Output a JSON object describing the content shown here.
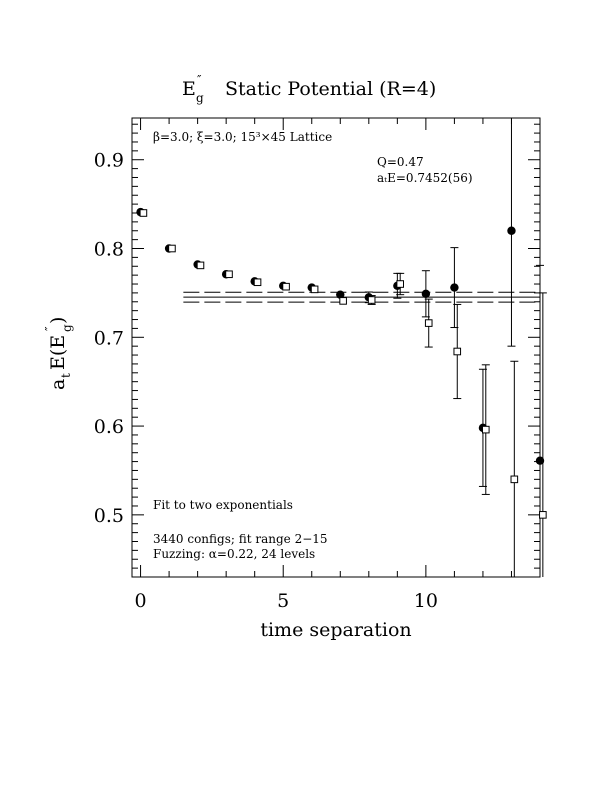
{
  "chart_data": {
    "type": "scatter",
    "title": "Static Potential (R=4)",
    "title_symbol": {
      "base": "E",
      "prime": "″",
      "sub": "g"
    },
    "xlabel": "time separation",
    "ylabel": {
      "main": "a",
      "sub1": "t",
      "mid": "E(E",
      "prime": "″",
      "sub2": "g",
      "end": " )"
    },
    "xlim": [
      -0.3,
      14
    ],
    "ylim": [
      0.43,
      0.947
    ],
    "xticks": [
      0,
      5,
      10
    ],
    "yticks": [
      0.5,
      0.6,
      0.7,
      0.8,
      0.9
    ],
    "xtick_labels": [
      "0",
      "5",
      "10"
    ],
    "ytick_labels": [
      "0.5",
      "0.6",
      "0.7",
      "0.8",
      "0.9"
    ],
    "annotations": {
      "lattice": "β=3.0; ξ=3.0; 15³×45 Lattice",
      "q": "Q=0.47",
      "energy": "aₜE=0.7452(56)",
      "fit_type": "Fit to two exponentials",
      "configs": "3440 configs; fit range 2−15",
      "fuzzing": "Fuzzing: α=0.22, 24 levels"
    },
    "fit": {
      "value": 0.7452,
      "error": 0.0056,
      "x_range": [
        1.5,
        14
      ]
    },
    "series": [
      {
        "marker": "filled-circle",
        "x": [
          0,
          1,
          2,
          3,
          4,
          5,
          6,
          7,
          8,
          9,
          10,
          11,
          12,
          13,
          14
        ],
        "y": [
          0.841,
          0.8,
          0.782,
          0.771,
          0.763,
          0.758,
          0.756,
          0.748,
          0.745,
          0.758,
          0.749,
          0.756,
          0.598,
          0.82,
          0.561
        ],
        "err": [
          0.002,
          0.002,
          0.002,
          0.002,
          0.002,
          0.003,
          0.003,
          0.004,
          0.006,
          0.014,
          0.026,
          0.045,
          0.066,
          0.13,
          0.22
        ]
      },
      {
        "marker": "open-square",
        "x": [
          0.1,
          1.1,
          2.1,
          3.1,
          4.1,
          5.1,
          6.1,
          7.1,
          8.1,
          9.1,
          10.1,
          11.1,
          12.1,
          13.1,
          14.1
        ],
        "y": [
          0.84,
          0.8,
          0.781,
          0.771,
          0.762,
          0.757,
          0.754,
          0.741,
          0.742,
          0.76,
          0.716,
          0.684,
          0.596,
          0.54,
          0.5
        ],
        "err": [
          0.002,
          0.002,
          0.002,
          0.002,
          0.002,
          0.003,
          0.003,
          0.004,
          0.005,
          0.012,
          0.027,
          0.053,
          0.073,
          0.133,
          0.25
        ]
      }
    ]
  }
}
